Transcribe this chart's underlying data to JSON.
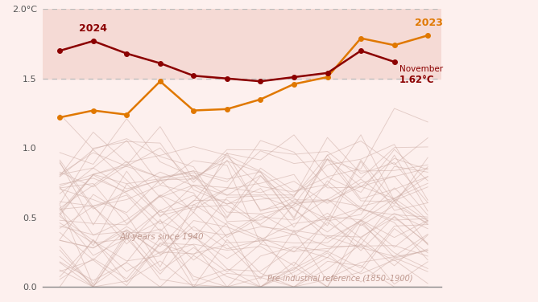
{
  "months": [
    1,
    2,
    3,
    4,
    5,
    6,
    7,
    8,
    9,
    10,
    11
  ],
  "data_2024": [
    1.7,
    1.77,
    1.68,
    1.61,
    1.52,
    1.5,
    1.48,
    1.51,
    1.54,
    1.7,
    1.62
  ],
  "data_2023": [
    1.22,
    1.27,
    1.24,
    1.48,
    1.27,
    1.28,
    1.35,
    1.46,
    1.51,
    1.79,
    1.74,
    1.81
  ],
  "months_2023": [
    1,
    2,
    3,
    4,
    5,
    6,
    7,
    8,
    9,
    10,
    11,
    12
  ],
  "color_2024": "#8B0000",
  "color_2023": "#E07800",
  "color_background": "#FDF0EE",
  "color_above_threshold": "#F5DAD5",
  "color_dashed": "#bbbbbb",
  "threshold_line": 1.5,
  "ylim": [
    0.0,
    2.0
  ],
  "yticks": [
    0.0,
    0.5,
    1.0,
    1.5,
    2.0
  ],
  "ytick_labels": [
    "0.0",
    "0.5",
    "1.0",
    "1.5",
    "2.0°C"
  ],
  "label_2024": "2024",
  "label_2023": "2023",
  "annotation_november": "November",
  "annotation_temp": "1.62°C",
  "annotation_all_years": "All years since 1940",
  "annotation_preindustrial": "Pre-industrial reference (1850–1900)",
  "hist_color": "#CDADA5",
  "hist_alpha": 0.55,
  "num_historical_lines": 45,
  "xlim_left": 0.5,
  "xlim_right": 12.4
}
